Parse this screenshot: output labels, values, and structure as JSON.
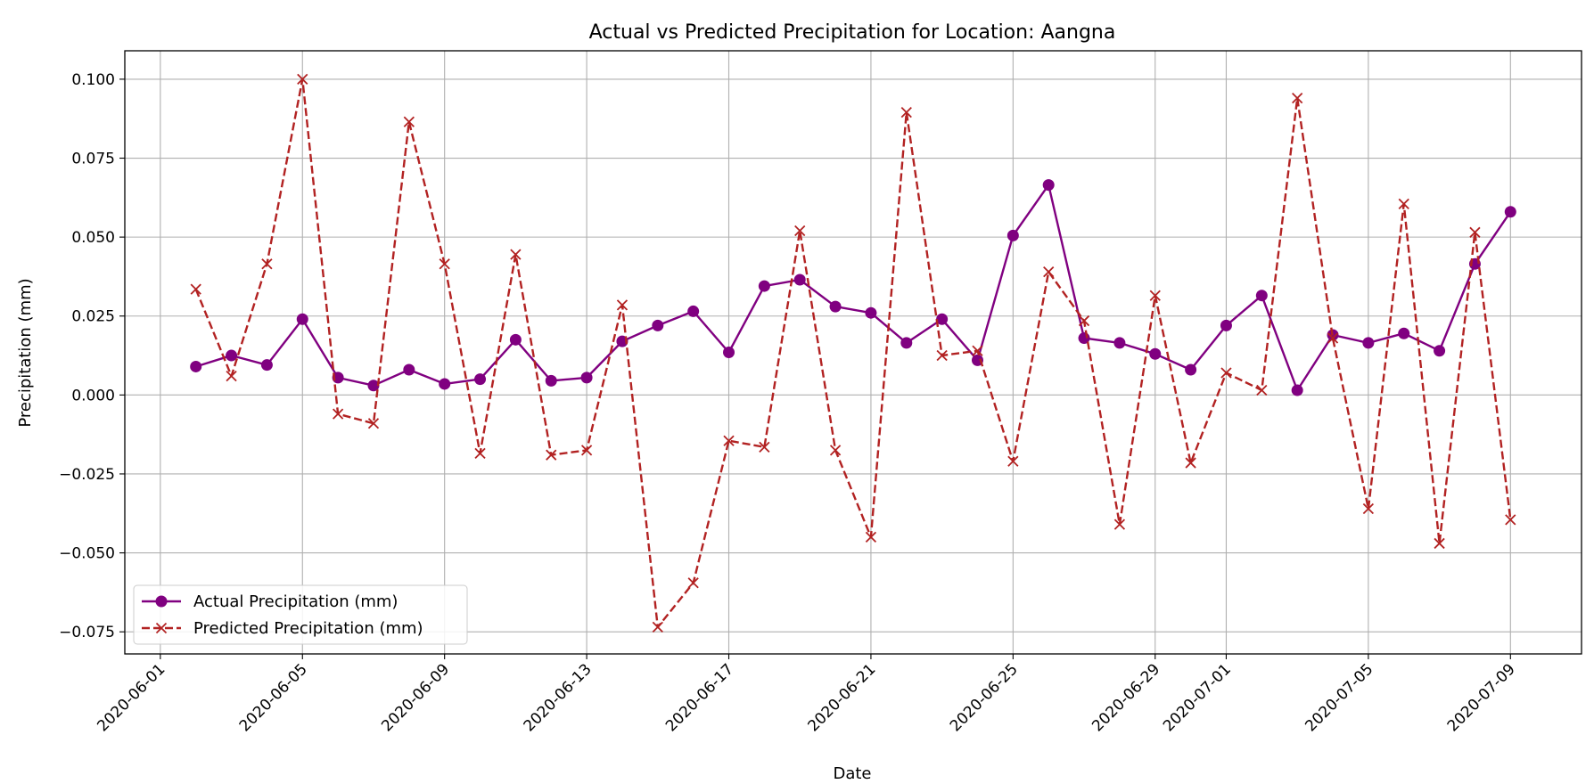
{
  "chart_data": {
    "type": "line",
    "title": "Actual vs Predicted Precipitation for Location: Aangna",
    "xlabel": "Date",
    "ylabel": "Precipitation (mm)",
    "grid": true,
    "legend_position": "lower-left",
    "xlim": [
      "2020-05-31",
      "2020-07-11"
    ],
    "ylim": [
      -0.082,
      0.109
    ],
    "x_ticks": [
      "2020-06-01",
      "2020-06-05",
      "2020-06-09",
      "2020-06-13",
      "2020-06-17",
      "2020-06-21",
      "2020-06-25",
      "2020-06-29",
      "2020-07-01",
      "2020-07-05",
      "2020-07-09"
    ],
    "y_ticks": [
      -0.075,
      -0.05,
      -0.025,
      0.0,
      0.025,
      0.05,
      0.075,
      0.1
    ],
    "y_tick_labels": [
      "−0.075",
      "−0.050",
      "−0.025",
      "0.000",
      "0.025",
      "0.050",
      "0.075",
      "0.100"
    ],
    "x": [
      "2020-06-02",
      "2020-06-03",
      "2020-06-04",
      "2020-06-05",
      "2020-06-06",
      "2020-06-07",
      "2020-06-08",
      "2020-06-09",
      "2020-06-10",
      "2020-06-11",
      "2020-06-12",
      "2020-06-13",
      "2020-06-14",
      "2020-06-15",
      "2020-06-16",
      "2020-06-17",
      "2020-06-18",
      "2020-06-19",
      "2020-06-20",
      "2020-06-21",
      "2020-06-22",
      "2020-06-23",
      "2020-06-24",
      "2020-06-25",
      "2020-06-26",
      "2020-06-27",
      "2020-06-28",
      "2020-06-29",
      "2020-06-30",
      "2020-07-01",
      "2020-07-02",
      "2020-07-03",
      "2020-07-04",
      "2020-07-05",
      "2020-07-06",
      "2020-07-07",
      "2020-07-08",
      "2020-07-09"
    ],
    "series": [
      {
        "name": "Actual Precipitation (mm)",
        "color": "#800080",
        "line_style": "solid",
        "marker": "circle",
        "values": [
          0.009,
          0.0125,
          0.0095,
          0.024,
          0.0055,
          0.003,
          0.008,
          0.0035,
          0.005,
          0.0175,
          0.0045,
          0.0055,
          0.017,
          0.022,
          0.0265,
          0.0135,
          0.0345,
          0.0365,
          0.028,
          0.026,
          0.0165,
          0.024,
          0.011,
          0.0505,
          0.0665,
          0.018,
          0.0165,
          0.013,
          0.008,
          0.022,
          0.0315,
          0.0015,
          0.019,
          0.0165,
          0.0195,
          0.014,
          0.0415,
          0.058
        ]
      },
      {
        "name": "Predicted Precipitation (mm)",
        "color": "#b22222",
        "line_style": "dashed",
        "marker": "x",
        "values": [
          0.0335,
          0.006,
          0.0415,
          0.1,
          -0.006,
          -0.009,
          0.0865,
          0.0415,
          -0.0185,
          0.0445,
          -0.019,
          -0.0175,
          0.0285,
          -0.0735,
          -0.0595,
          -0.0145,
          -0.0165,
          0.052,
          -0.0175,
          -0.045,
          0.0895,
          0.0125,
          0.014,
          -0.021,
          0.039,
          0.0235,
          -0.041,
          0.0315,
          -0.0215,
          0.007,
          0.0015,
          0.094,
          0.018,
          -0.036,
          0.0605,
          -0.047,
          0.0515,
          -0.0395
        ]
      }
    ]
  }
}
